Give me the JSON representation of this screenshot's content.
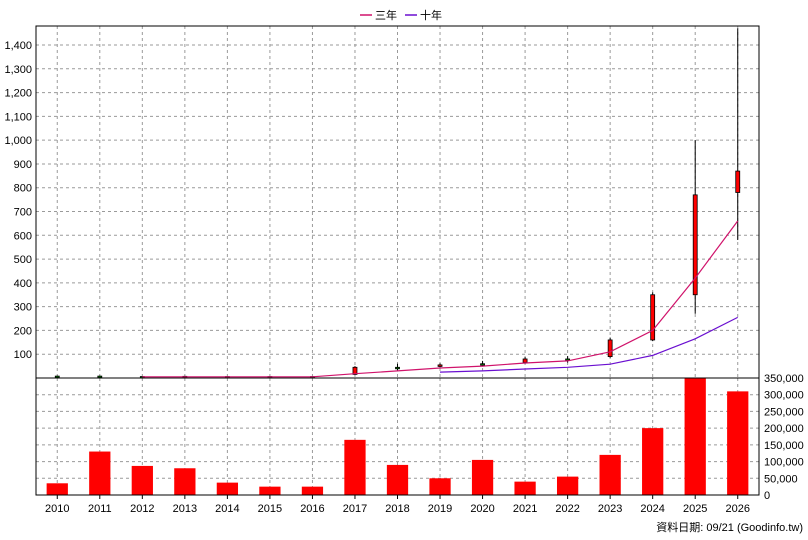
{
  "chart_data": [
    {
      "type": "candlestick",
      "legend": {
        "placement": "top-center",
        "entries": [
          {
            "label": "三年",
            "color": "#d0136b"
          },
          {
            "label": "十年",
            "color": "#6a0fd0"
          }
        ]
      },
      "x": [
        "2010",
        "2011",
        "2012",
        "2013",
        "2014",
        "2015",
        "2016",
        "2017",
        "2018",
        "2019",
        "2020",
        "2021",
        "2022",
        "2023",
        "2024",
        "2025",
        "2026"
      ],
      "y_ticks": [
        "100",
        "200",
        "300",
        "400",
        "500",
        "600",
        "700",
        "800",
        "900",
        "1,000",
        "1,100",
        "1,200",
        "1,300",
        "1,400"
      ],
      "ylim": [
        0,
        1480
      ],
      "grid": true,
      "candles": [
        {
          "x": "2010",
          "open": 8,
          "close": 5,
          "high": 10,
          "low": 4
        },
        {
          "x": "2011",
          "open": 8,
          "close": 5,
          "high": 10,
          "low": 4
        },
        {
          "x": "2012",
          "open": 6,
          "close": 5,
          "high": 7,
          "low": 4
        },
        {
          "x": "2013",
          "open": 7,
          "close": 6,
          "high": 9,
          "low": 5
        },
        {
          "x": "2014",
          "open": 6,
          "close": 5,
          "high": 7,
          "low": 4
        },
        {
          "x": "2015",
          "open": 6,
          "close": 5,
          "high": 7,
          "low": 4
        },
        {
          "x": "2016",
          "open": 6,
          "close": 5,
          "high": 7,
          "low": 4
        },
        {
          "x": "2017",
          "open": 15,
          "close": 45,
          "high": 50,
          "low": 12
        },
        {
          "x": "2018",
          "open": 45,
          "close": 40,
          "high": 60,
          "low": 32
        },
        {
          "x": "2019",
          "open": 50,
          "close": 55,
          "high": 62,
          "low": 45
        },
        {
          "x": "2020",
          "open": 60,
          "close": 55,
          "high": 72,
          "low": 48
        },
        {
          "x": "2021",
          "open": 65,
          "close": 80,
          "high": 88,
          "low": 60
        },
        {
          "x": "2022",
          "open": 80,
          "close": 76,
          "high": 92,
          "low": 65
        },
        {
          "x": "2023",
          "open": 90,
          "close": 160,
          "high": 170,
          "low": 85
        },
        {
          "x": "2024",
          "open": 160,
          "close": 350,
          "high": 360,
          "low": 155
        },
        {
          "x": "2025",
          "open": 350,
          "close": 770,
          "high": 1000,
          "low": 270
        },
        {
          "x": "2026",
          "open": 780,
          "close": 870,
          "high": 1470,
          "low": 580
        }
      ],
      "series": [
        {
          "name": "三年",
          "color": "#d0136b",
          "values": [
            null,
            null,
            5,
            5,
            5,
            5,
            5,
            18,
            30,
            42,
            50,
            63,
            72,
            110,
            200,
            420,
            660
          ]
        },
        {
          "name": "十年",
          "color": "#6a0fd0",
          "values": [
            null,
            null,
            null,
            null,
            null,
            null,
            null,
            null,
            null,
            25,
            30,
            38,
            45,
            58,
            95,
            165,
            255
          ]
        }
      ]
    },
    {
      "type": "bar",
      "categories": [
        "2010",
        "2011",
        "2012",
        "2013",
        "2014",
        "2015",
        "2016",
        "2017",
        "2018",
        "2019",
        "2020",
        "2021",
        "2022",
        "2023",
        "2024",
        "2025",
        "2026"
      ],
      "values": [
        35000,
        130000,
        87000,
        80000,
        37000,
        25000,
        25000,
        165000,
        90000,
        50000,
        105000,
        40000,
        55000,
        120000,
        200000,
        350000,
        310000
      ],
      "y_ticks": [
        "0",
        "50,000",
        "100,000",
        "150,000",
        "200,000",
        "250,000",
        "300,000",
        "350,000"
      ],
      "ylim": [
        0,
        350000
      ],
      "bar_color": "#ff0000",
      "grid": true
    }
  ],
  "footer": {
    "note": "資料日期: 09/21  (Goodinfo.tw)"
  }
}
